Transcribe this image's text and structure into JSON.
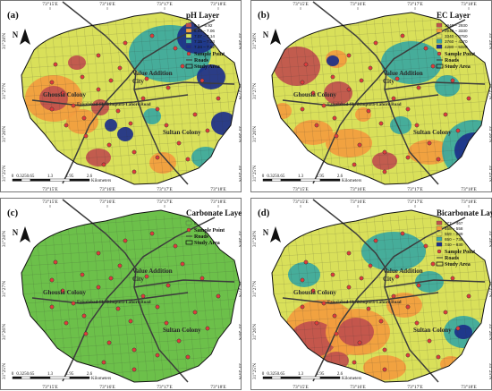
{
  "figure": {
    "x_ticks": [
      "73°15'E",
      "73°16'E",
      "73°17'E",
      "73°18'E"
    ],
    "y_ticks": [
      "31°28'N",
      "31°27'N",
      "31°26'N",
      "31°25'N"
    ],
    "north_label": "N",
    "scale_labels": [
      "0",
      "0.325",
      "0.65",
      "1.3",
      "1.95",
      "2.6"
    ],
    "scale_unit": "Kilometers",
    "places": {
      "ghousia": "Ghousia Colony",
      "value_addition": "Value Addition",
      "city": "City",
      "sultan": "Sultan Colony",
      "road": "Faisalabad-Sheikhupura-Lahore Road"
    },
    "common_legend": {
      "sample_point": "Sample Point",
      "roads": "Roads",
      "study_area": "Study Area"
    }
  },
  "panels": [
    {
      "label": "(a)",
      "legend_title": "pH Layer",
      "classes": [
        {
          "range": "6.6 – 6.92",
          "color": "#c0504d"
        },
        {
          "range": "6.93 – 7.06",
          "color": "#f39c3e"
        },
        {
          "range": "7.07 – 7.14",
          "color": "#d9e05a"
        },
        {
          "range": "7.15 – 7.23",
          "color": "#3aa8a0"
        },
        {
          "range": "7.24 – 7.62",
          "color": "#1c2f8a"
        }
      ]
    },
    {
      "label": "(b)",
      "legend_title": "EC Layer",
      "classes": [
        {
          "range": "1940 – 2930",
          "color": "#c0504d"
        },
        {
          "range": "2940 – 3330",
          "color": "#f39c3e"
        },
        {
          "range": "3340 – 3750",
          "color": "#d9e05a"
        },
        {
          "range": "3760 – 4270",
          "color": "#3aa8a0"
        },
        {
          "range": "4280 – 5320",
          "color": "#1c2f8a"
        }
      ]
    },
    {
      "label": "(c)",
      "legend_title": "Carbonate Layer",
      "classes": [
        {
          "range": "0",
          "color": "#6cc04a"
        }
      ]
    },
    {
      "label": "(d)",
      "legend_title": "Bicarbonate Layer",
      "classes": [
        {
          "range": "377 – 467",
          "color": "#c0504d"
        },
        {
          "range": "468 – 558",
          "color": "#f39c3e"
        },
        {
          "range": "559 – 649",
          "color": "#d9e05a"
        },
        {
          "range": "650 – 739",
          "color": "#3aa8a0"
        },
        {
          "range": "740 – 830",
          "color": "#1c2f8a"
        }
      ]
    }
  ]
}
